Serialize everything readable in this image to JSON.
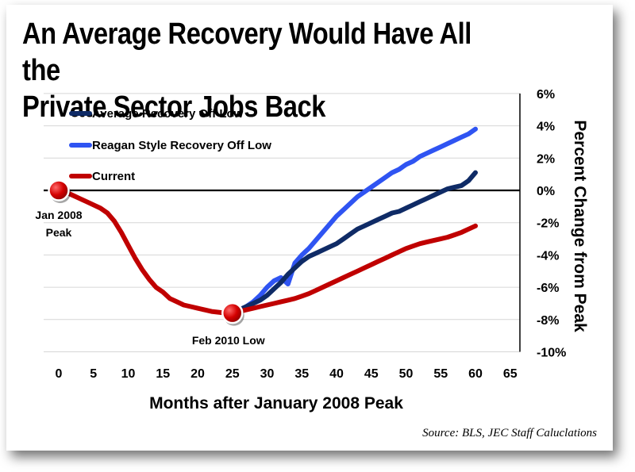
{
  "chart_data": {
    "type": "line",
    "title_lines": [
      "An Average Recovery Would Have All the",
      "Private Sector Jobs Back"
    ],
    "xlabel": "Months after January 2008 Peak",
    "ylabel": "Percent Change from Peak",
    "xlim": [
      0,
      65
    ],
    "ylim": [
      -10,
      6
    ],
    "x_ticks": [
      "0",
      "5",
      "10",
      "15",
      "20",
      "25",
      "30",
      "35",
      "40",
      "45",
      "50",
      "55",
      "60",
      "65"
    ],
    "y_ticks": [
      "6%",
      "4%",
      "2%",
      "0%",
      "-2%",
      "-4%",
      "-6%",
      "-8%",
      "-10%"
    ],
    "source": "Source:  BLS, JEC Staff Caluclations",
    "series": [
      {
        "name": "Average Recovery Off Low",
        "color": "#0f2b66",
        "x": [
          25,
          26,
          27,
          28,
          29,
          30,
          31,
          32,
          33,
          34,
          35,
          36,
          37,
          38,
          39,
          40,
          41,
          42,
          43,
          44,
          45,
          46,
          47,
          48,
          49,
          50,
          51,
          52,
          53,
          54,
          55,
          56,
          57,
          58,
          59,
          60
        ],
        "y": [
          -7.6,
          -7.4,
          -7.2,
          -7.0,
          -6.8,
          -6.5,
          -6.1,
          -5.7,
          -5.2,
          -4.8,
          -4.4,
          -4.1,
          -3.9,
          -3.7,
          -3.5,
          -3.3,
          -3.0,
          -2.7,
          -2.4,
          -2.2,
          -2.0,
          -1.8,
          -1.6,
          -1.4,
          -1.3,
          -1.1,
          -0.9,
          -0.7,
          -0.5,
          -0.3,
          -0.1,
          0.1,
          0.2,
          0.3,
          0.6,
          1.1
        ]
      },
      {
        "name": "Reagan Style Recovery  Off Low",
        "color": "#2f54f2",
        "x": [
          25,
          26,
          27,
          28,
          29,
          30,
          31,
          32,
          33,
          34,
          35,
          36,
          37,
          38,
          39,
          40,
          41,
          42,
          43,
          44,
          45,
          46,
          47,
          48,
          49,
          50,
          51,
          52,
          53,
          54,
          55,
          56,
          57,
          58,
          59,
          60
        ],
        "y": [
          -7.6,
          -7.4,
          -7.2,
          -6.9,
          -6.5,
          -6.0,
          -5.6,
          -5.4,
          -5.8,
          -4.5,
          -4.0,
          -3.6,
          -3.1,
          -2.6,
          -2.1,
          -1.6,
          -1.2,
          -0.8,
          -0.4,
          -0.1,
          0.2,
          0.5,
          0.8,
          1.1,
          1.3,
          1.6,
          1.8,
          2.1,
          2.3,
          2.5,
          2.7,
          2.9,
          3.1,
          3.3,
          3.5,
          3.8
        ]
      },
      {
        "name": "Current",
        "color": "#c00000",
        "x": [
          0,
          1,
          2,
          3,
          4,
          5,
          6,
          7,
          8,
          9,
          10,
          11,
          12,
          13,
          14,
          15,
          16,
          17,
          18,
          19,
          20,
          21,
          22,
          23,
          24,
          25,
          26,
          27,
          28,
          29,
          30,
          31,
          32,
          33,
          34,
          35,
          36,
          37,
          38,
          39,
          40,
          41,
          42,
          43,
          44,
          45,
          46,
          47,
          48,
          49,
          50,
          51,
          52,
          53,
          54,
          55,
          56,
          57,
          58,
          59,
          60
        ],
        "y": [
          0,
          -0.1,
          -0.3,
          -0.5,
          -0.7,
          -0.9,
          -1.1,
          -1.4,
          -1.9,
          -2.6,
          -3.4,
          -4.2,
          -4.9,
          -5.5,
          -6.0,
          -6.3,
          -6.7,
          -6.9,
          -7.1,
          -7.2,
          -7.3,
          -7.4,
          -7.5,
          -7.55,
          -7.6,
          -7.6,
          -7.5,
          -7.4,
          -7.3,
          -7.2,
          -7.1,
          -7.0,
          -6.9,
          -6.8,
          -6.7,
          -6.55,
          -6.4,
          -6.2,
          -6.0,
          -5.8,
          -5.6,
          -5.4,
          -5.2,
          -5.0,
          -4.8,
          -4.6,
          -4.4,
          -4.2,
          -4.0,
          -3.8,
          -3.6,
          -3.45,
          -3.3,
          -3.2,
          -3.1,
          -3.0,
          -2.9,
          -2.75,
          -2.6,
          -2.4,
          -2.2
        ]
      }
    ],
    "annotations": [
      {
        "name": "jan-2008-peak",
        "x": 0,
        "y": 0,
        "lines": [
          "Jan 2008",
          "Peak"
        ]
      },
      {
        "name": "feb-2010-low",
        "x": 25,
        "y": -7.6,
        "lines": [
          "Feb 2010 Low"
        ]
      }
    ],
    "zero_line": true,
    "grid": true
  }
}
